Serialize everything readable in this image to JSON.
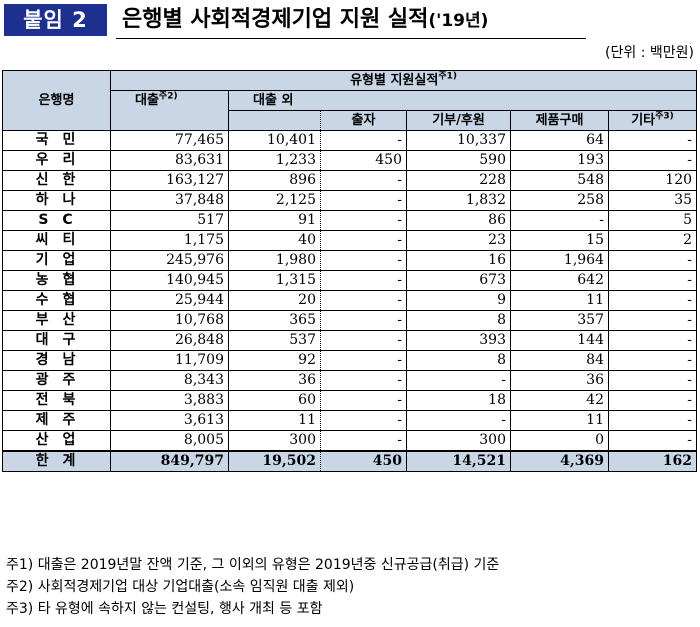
{
  "badge": "붙임 2",
  "title": "은행별 사회적경제기업 지원 실적",
  "title_suffix": "('19년)",
  "unit": "(단위 : 백만원)",
  "headers": {
    "bank": "은행명",
    "group": "유형별 지원실적",
    "group_sup": "주1)",
    "loan": "대출",
    "loan_sup": "주2)",
    "non_loan": "대출 외",
    "investment": "출자",
    "donation": "기부/후원",
    "purchase": "제품구매",
    "other": "기타",
    "other_sup": "주3)"
  },
  "rows": [
    {
      "bank": "국민",
      "loan": "77,465",
      "non_loan": "10,401",
      "investment": "-",
      "donation": "10,337",
      "purchase": "64",
      "other": "-"
    },
    {
      "bank": "우리",
      "loan": "83,631",
      "non_loan": "1,233",
      "investment": "450",
      "donation": "590",
      "purchase": "193",
      "other": "-"
    },
    {
      "bank": "신한",
      "loan": "163,127",
      "non_loan": "896",
      "investment": "-",
      "donation": "228",
      "purchase": "548",
      "other": "120"
    },
    {
      "bank": "하나",
      "loan": "37,848",
      "non_loan": "2,125",
      "investment": "-",
      "donation": "1,832",
      "purchase": "258",
      "other": "35"
    },
    {
      "bank": "SC",
      "loan": "517",
      "non_loan": "91",
      "investment": "-",
      "donation": "86",
      "purchase": "-",
      "other": "5"
    },
    {
      "bank": "씨티",
      "loan": "1,175",
      "non_loan": "40",
      "investment": "-",
      "donation": "23",
      "purchase": "15",
      "other": "2"
    },
    {
      "bank": "기업",
      "loan": "245,976",
      "non_loan": "1,980",
      "investment": "-",
      "donation": "16",
      "purchase": "1,964",
      "other": "-"
    },
    {
      "bank": "농협",
      "loan": "140,945",
      "non_loan": "1,315",
      "investment": "-",
      "donation": "673",
      "purchase": "642",
      "other": "-"
    },
    {
      "bank": "수협",
      "loan": "25,944",
      "non_loan": "20",
      "investment": "-",
      "donation": "9",
      "purchase": "11",
      "other": "-"
    },
    {
      "bank": "부산",
      "loan": "10,768",
      "non_loan": "365",
      "investment": "-",
      "donation": "8",
      "purchase": "357",
      "other": "-"
    },
    {
      "bank": "대구",
      "loan": "26,848",
      "non_loan": "537",
      "investment": "-",
      "donation": "393",
      "purchase": "144",
      "other": "-"
    },
    {
      "bank": "경남",
      "loan": "11,709",
      "non_loan": "92",
      "investment": "-",
      "donation": "8",
      "purchase": "84",
      "other": "-"
    },
    {
      "bank": "광주",
      "loan": "8,343",
      "non_loan": "36",
      "investment": "-",
      "donation": "-",
      "purchase": "36",
      "other": "-"
    },
    {
      "bank": "전북",
      "loan": "3,883",
      "non_loan": "60",
      "investment": "-",
      "donation": "18",
      "purchase": "42",
      "other": "-"
    },
    {
      "bank": "제주",
      "loan": "3,613",
      "non_loan": "11",
      "investment": "-",
      "donation": "-",
      "purchase": "11",
      "other": "-"
    },
    {
      "bank": "산업",
      "loan": "8,005",
      "non_loan": "300",
      "investment": "-",
      "donation": "300",
      "purchase": "0",
      "other": "-"
    }
  ],
  "total": {
    "bank": "한계",
    "loan": "849,797",
    "non_loan": "19,502",
    "investment": "450",
    "donation": "14,521",
    "purchase": "4,369",
    "other": "162"
  },
  "notes": [
    "주1) 대출은 2019년말 잔액 기준, 그 이외의 유형은 2019년중 신규공급(취급) 기준",
    "주2) 사회적경제기업 대상 기업대출(소속 임직원 대출 제외)",
    "주3) 타 유형에 속하지 않는 컨설팅, 행사 개최 등 포함"
  ]
}
